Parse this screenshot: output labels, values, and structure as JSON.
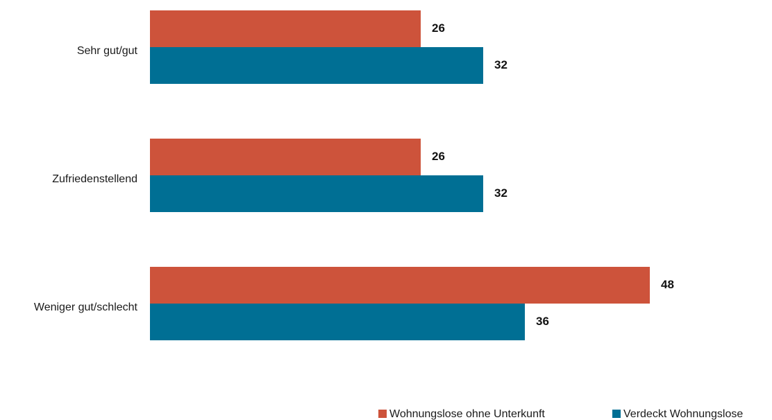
{
  "chart_data": {
    "type": "bar",
    "orientation": "horizontal",
    "categories": [
      "Sehr gut/gut",
      "Zufriedenstellend",
      "Weniger gut/schlecht"
    ],
    "series": [
      {
        "name": "Wohnungslose ohne Unterkunft",
        "values": [
          26,
          26,
          48
        ],
        "color": "#cd533b"
      },
      {
        "name": "Verdeckt Wohnungslose",
        "values": [
          32,
          32,
          36
        ],
        "color": "#006f94"
      }
    ],
    "title": "",
    "xlabel": "",
    "ylabel": "",
    "xlim": [
      0,
      55
    ],
    "grid": false,
    "legend": "bottom-right",
    "data_labels": true
  }
}
